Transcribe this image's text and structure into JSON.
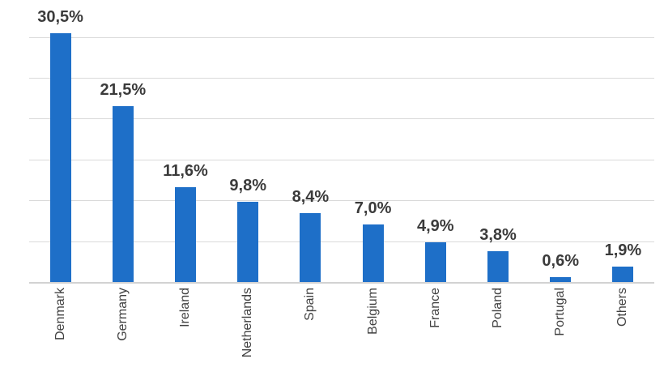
{
  "chart_data": {
    "type": "bar",
    "title": "",
    "xlabel": "",
    "ylabel": "",
    "categories": [
      "Denmark",
      "Germany",
      "Ireland",
      "Netherlands",
      "Spain",
      "Belgium",
      "France",
      "Poland",
      "Portugal",
      "Others"
    ],
    "values": [
      30.5,
      21.5,
      11.6,
      9.8,
      8.4,
      7.0,
      4.9,
      3.8,
      0.6,
      1.9
    ],
    "data_labels": [
      "30,5%",
      "21,5%",
      "11,6%",
      "9,8%",
      "8,4%",
      "7,0%",
      "4,9%",
      "3,8%",
      "0,6%",
      "1,9%"
    ],
    "unit": "percent",
    "ylim": [
      0,
      30.5
    ],
    "gridlines": [
      5,
      10,
      15,
      20,
      25,
      30
    ],
    "grid": true,
    "legend": "none",
    "category_label_rotation": 90,
    "colors": {
      "bar": "#1e6fc8",
      "gridline": "#dadada",
      "axis": "#d2d2d2",
      "data_label": "#3b3b3b",
      "category_label": "#404040",
      "background": "#ffffff"
    }
  }
}
